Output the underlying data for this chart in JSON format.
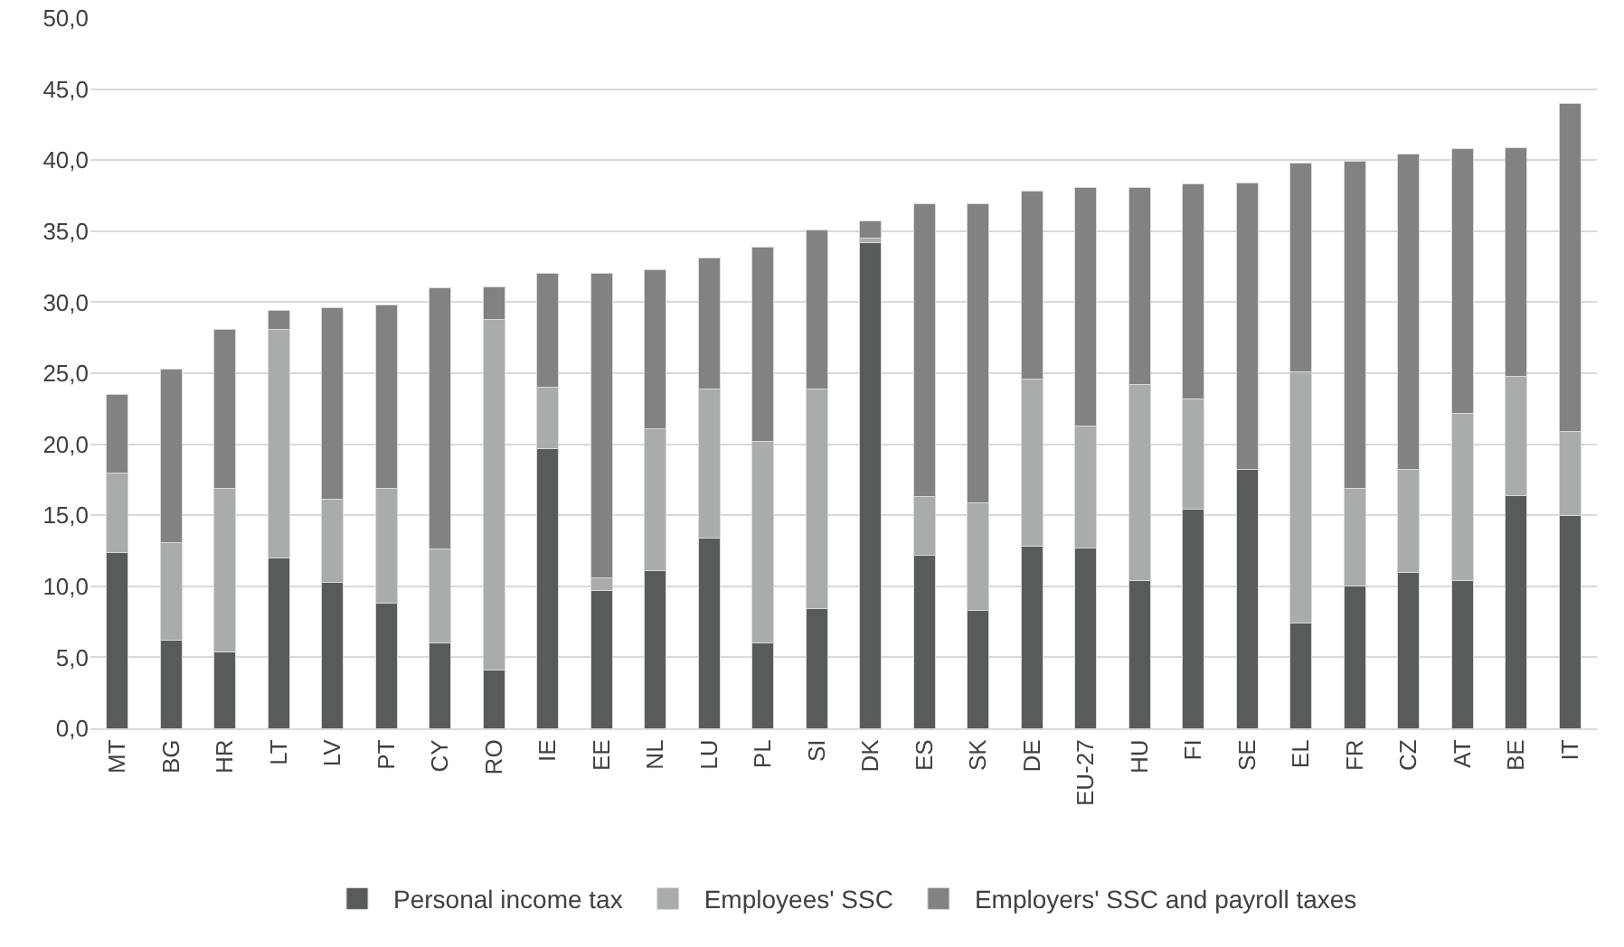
{
  "chart_data": {
    "type": "bar",
    "stacked": true,
    "grid": "y",
    "legend": "bottom",
    "categories": [
      "MT",
      "BG",
      "HR",
      "LT",
      "LV",
      "PT",
      "CY",
      "RO",
      "IE",
      "EE",
      "NL",
      "LU",
      "PL",
      "SI",
      "DK",
      "ES",
      "SK",
      "DE",
      "EU-27",
      "HU",
      "FI",
      "SE",
      "EL",
      "FR",
      "CZ",
      "AT",
      "BE",
      "IT"
    ],
    "ylim": [
      0,
      50
    ],
    "yticks": [
      {
        "value": 0,
        "label": "0,0"
      },
      {
        "value": 5,
        "label": "5,0"
      },
      {
        "value": 10,
        "label": "10,0"
      },
      {
        "value": 15,
        "label": "15,0"
      },
      {
        "value": 20,
        "label": "20,0"
      },
      {
        "value": 25,
        "label": "25,0"
      },
      {
        "value": 30,
        "label": "30,0"
      },
      {
        "value": 35,
        "label": "35,0"
      },
      {
        "value": 40,
        "label": "40,0"
      },
      {
        "value": 45,
        "label": "45,0"
      },
      {
        "value": 50,
        "label": "50,0"
      }
    ],
    "series": [
      {
        "name": "Personal income tax",
        "color": "#585b5b",
        "values": [
          12.4,
          6.2,
          5.4,
          12.0,
          10.3,
          8.8,
          6.0,
          4.1,
          19.7,
          9.7,
          11.1,
          13.4,
          6.0,
          8.4,
          34.2,
          12.2,
          8.3,
          12.8,
          12.7,
          10.4,
          15.4,
          18.2,
          7.4,
          10.0,
          11.0,
          10.4,
          16.4,
          15.0
        ]
      },
      {
        "name": "Employees' SSC",
        "color": "#a9acac",
        "values": [
          5.6,
          6.9,
          11.5,
          16.1,
          5.8,
          8.1,
          6.6,
          24.7,
          4.3,
          0.9,
          10.0,
          10.5,
          14.2,
          15.5,
          0.3,
          4.1,
          7.6,
          11.8,
          8.6,
          13.8,
          7.8,
          0,
          17.7,
          6.9,
          7.2,
          11.8,
          8.4,
          5.9
        ]
      },
      {
        "name": "Employers' SSC and payroll taxes",
        "color": "#808283",
        "values": [
          5.5,
          12.2,
          11.2,
          1.3,
          13.5,
          12.9,
          18.4,
          2.3,
          8.0,
          21.4,
          11.2,
          9.2,
          13.7,
          11.2,
          1.2,
          20.6,
          21.0,
          13.2,
          16.8,
          13.9,
          15.1,
          20.2,
          14.7,
          23.0,
          22.2,
          18.6,
          16.1,
          23.1
        ]
      }
    ]
  }
}
